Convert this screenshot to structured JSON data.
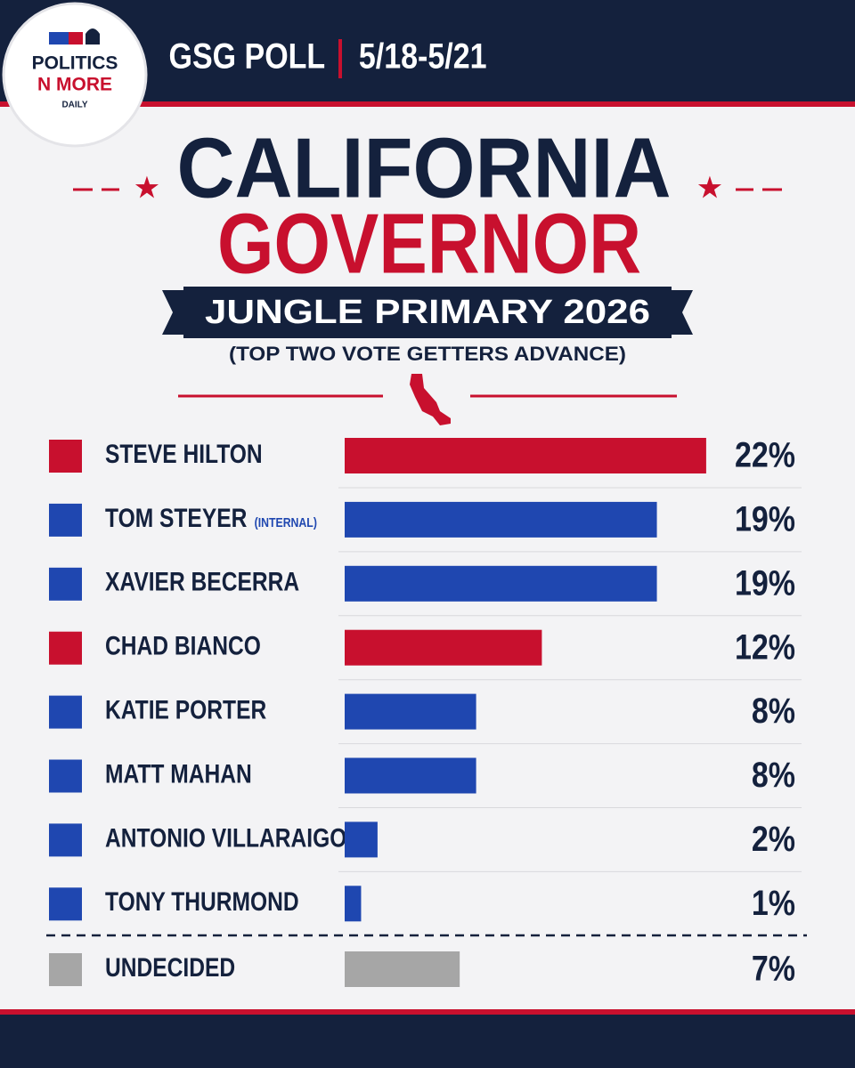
{
  "header": {
    "poll": "GSG POLL",
    "dates": "5/18-5/21"
  },
  "logo": {
    "line1": "POLITICS",
    "line2": "N MORE",
    "line3": "DAILY"
  },
  "chart_data": {
    "type": "bar",
    "orientation": "horizontal",
    "title": "CALIFORNIA",
    "subtitle": "GOVERNOR",
    "banner": "JUNGLE PRIMARY 2026",
    "note": "(TOP TWO VOTE GETTERS ADVANCE)",
    "categories": [
      "STEVE HILTON",
      "TOM STEYER",
      "XAVIER BECERRA",
      "CHAD BIANCO",
      "KATIE PORTER",
      "MATT MAHAN",
      "ANTONIO VILLARAIGOSA",
      "TONY THURMOND",
      "UNDECIDED"
    ],
    "category_notes": [
      null,
      "(INTERNAL)",
      null,
      null,
      null,
      null,
      null,
      null,
      null
    ],
    "values": [
      22,
      19,
      19,
      12,
      8,
      8,
      2,
      1,
      7
    ],
    "value_labels": [
      "22%",
      "19%",
      "19%",
      "12%",
      "8%",
      "8%",
      "2%",
      "1%",
      "7%"
    ],
    "colors": [
      "#c8102e",
      "#1f47b0",
      "#1f47b0",
      "#c8102e",
      "#1f47b0",
      "#1f47b0",
      "#1f47b0",
      "#1f47b0",
      "#a6a6a6"
    ]
  }
}
